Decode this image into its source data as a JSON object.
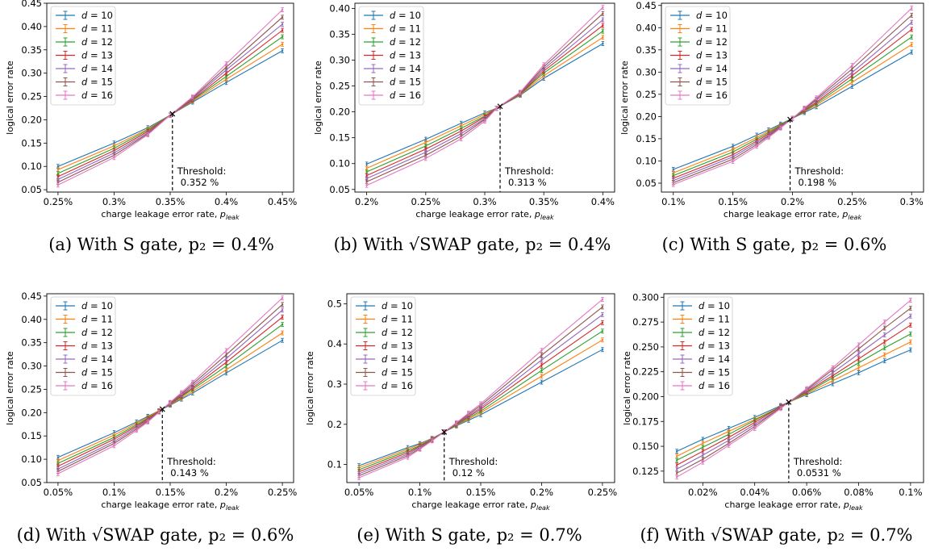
{
  "chart_data": [
    {
      "type": "line",
      "caption": "(a) With S gate, p₂ = 0.4%",
      "xlabel": "charge leakage error rate, p_leak",
      "ylabel": "logical error rate",
      "xlim": [
        0.0024,
        0.0046
      ],
      "ylim": [
        0.045,
        0.45
      ],
      "xticks": [
        0.0025,
        0.003,
        0.0035,
        0.004,
        0.0045
      ],
      "xticklabels": [
        "0.25%",
        "0.3%",
        "0.35%",
        "0.4%",
        "0.45%"
      ],
      "yticks": [
        0.05,
        0.1,
        0.15,
        0.2,
        0.25,
        0.3,
        0.35,
        0.4,
        0.45
      ],
      "yticklabels": [
        "0.05",
        "0.10",
        "0.15",
        "0.20",
        "0.25",
        "0.30",
        "0.35",
        "0.40",
        "0.45"
      ],
      "x": [
        0.0025,
        0.003,
        0.0033,
        0.0035,
        0.0037,
        0.004,
        0.0045
      ],
      "threshold": 0.00352,
      "threshold_label": [
        "Threshold:",
        "0.352 %"
      ],
      "series": [
        {
          "name": "d = 10",
          "values": [
            0.1,
            0.15,
            0.183,
            0.21,
            0.238,
            0.28,
            0.348
          ]
        },
        {
          "name": "d = 11",
          "values": [
            0.093,
            0.144,
            0.18,
            0.21,
            0.24,
            0.287,
            0.362
          ]
        },
        {
          "name": "d = 12",
          "values": [
            0.085,
            0.139,
            0.178,
            0.21,
            0.242,
            0.293,
            0.378
          ]
        },
        {
          "name": "d = 13",
          "values": [
            0.078,
            0.134,
            0.175,
            0.21,
            0.243,
            0.3,
            0.392
          ]
        },
        {
          "name": "d = 14",
          "values": [
            0.072,
            0.129,
            0.172,
            0.21,
            0.245,
            0.307,
            0.405
          ]
        },
        {
          "name": "d = 15",
          "values": [
            0.066,
            0.124,
            0.17,
            0.21,
            0.247,
            0.313,
            0.42
          ]
        },
        {
          "name": "d = 16",
          "values": [
            0.06,
            0.119,
            0.168,
            0.21,
            0.249,
            0.32,
            0.436
          ]
        }
      ]
    },
    {
      "type": "line",
      "caption": "(b) With √SWAP gate, p₂ = 0.4%",
      "xlabel": "charge leakage error rate, p_leak",
      "ylabel": "logical error rate",
      "xlim": [
        0.0019,
        0.0041
      ],
      "ylim": [
        0.045,
        0.41
      ],
      "xticks": [
        0.002,
        0.0025,
        0.003,
        0.0035,
        0.004
      ],
      "xticklabels": [
        "0.2%",
        "0.25%",
        "0.3%",
        "0.35%",
        "0.4%"
      ],
      "yticks": [
        0.05,
        0.1,
        0.15,
        0.2,
        0.25,
        0.3,
        0.35,
        0.4
      ],
      "yticklabels": [
        "0.05",
        "0.10",
        "0.15",
        "0.20",
        "0.25",
        "0.30",
        "0.35",
        "0.40"
      ],
      "x": [
        0.002,
        0.0025,
        0.0028,
        0.003,
        0.0031,
        0.0033,
        0.0035,
        0.004
      ],
      "threshold": 0.00313,
      "threshold_label": [
        "Threshold:",
        "0.313 %"
      ],
      "series": [
        {
          "name": "d = 10",
          "values": [
            0.099,
            0.147,
            0.178,
            0.198,
            0.207,
            0.232,
            0.265,
            0.332
          ]
        },
        {
          "name": "d = 11",
          "values": [
            0.091,
            0.141,
            0.173,
            0.195,
            0.207,
            0.233,
            0.27,
            0.344
          ]
        },
        {
          "name": "d = 12",
          "values": [
            0.084,
            0.134,
            0.168,
            0.192,
            0.207,
            0.234,
            0.275,
            0.356
          ]
        },
        {
          "name": "d = 13",
          "values": [
            0.077,
            0.128,
            0.163,
            0.19,
            0.207,
            0.235,
            0.279,
            0.367
          ]
        },
        {
          "name": "d = 14",
          "values": [
            0.071,
            0.122,
            0.158,
            0.187,
            0.207,
            0.236,
            0.283,
            0.378
          ]
        },
        {
          "name": "d = 15",
          "values": [
            0.065,
            0.116,
            0.153,
            0.185,
            0.207,
            0.237,
            0.287,
            0.39
          ]
        },
        {
          "name": "d = 16",
          "values": [
            0.058,
            0.11,
            0.148,
            0.182,
            0.207,
            0.238,
            0.291,
            0.402
          ]
        }
      ]
    },
    {
      "type": "line",
      "caption": "(c) With S gate, p₂ = 0.6%",
      "xlabel": "charge leakage error rate, p_leak",
      "ylabel": "logical error rate",
      "xlim": [
        0.0009,
        0.0031
      ],
      "ylim": [
        0.03,
        0.455
      ],
      "xticks": [
        0.001,
        0.0015,
        0.002,
        0.0025,
        0.003
      ],
      "xticklabels": [
        "0.1%",
        "0.15%",
        "0.2%",
        "0.25%",
        "0.3%"
      ],
      "yticks": [
        0.05,
        0.1,
        0.15,
        0.2,
        0.25,
        0.3,
        0.35,
        0.4,
        0.45
      ],
      "yticklabels": [
        "0.05",
        "0.10",
        "0.15",
        "0.20",
        "0.25",
        "0.30",
        "0.35",
        "0.40",
        "0.45"
      ],
      "x": [
        0.001,
        0.0015,
        0.0017,
        0.0018,
        0.0019,
        0.002,
        0.0021,
        0.0022,
        0.0025,
        0.003
      ],
      "threshold": 0.00198,
      "threshold_label": [
        "Threshold:",
        "0.198 %"
      ],
      "series": [
        {
          "name": "d = 10",
          "values": [
            0.081,
            0.133,
            0.158,
            0.17,
            0.183,
            0.196,
            0.209,
            0.222,
            0.268,
            0.345
          ]
        },
        {
          "name": "d = 11",
          "values": [
            0.073,
            0.126,
            0.153,
            0.167,
            0.181,
            0.196,
            0.211,
            0.226,
            0.277,
            0.362
          ]
        },
        {
          "name": "d = 12",
          "values": [
            0.067,
            0.12,
            0.149,
            0.164,
            0.18,
            0.196,
            0.212,
            0.229,
            0.285,
            0.379
          ]
        },
        {
          "name": "d = 13",
          "values": [
            0.061,
            0.114,
            0.145,
            0.161,
            0.178,
            0.196,
            0.214,
            0.232,
            0.292,
            0.396
          ]
        },
        {
          "name": "d = 14",
          "values": [
            0.056,
            0.109,
            0.141,
            0.158,
            0.177,
            0.196,
            0.216,
            0.236,
            0.299,
            0.412
          ]
        },
        {
          "name": "d = 15",
          "values": [
            0.051,
            0.104,
            0.137,
            0.156,
            0.175,
            0.196,
            0.217,
            0.239,
            0.307,
            0.428
          ]
        },
        {
          "name": "d = 16",
          "values": [
            0.047,
            0.099,
            0.133,
            0.153,
            0.174,
            0.196,
            0.219,
            0.242,
            0.315,
            0.444
          ]
        }
      ]
    },
    {
      "type": "line",
      "caption": "(d) With √SWAP gate, p₂ = 0.6%",
      "xlabel": "charge leakage error rate, p_leak",
      "ylabel": "logical error rate",
      "xlim": [
        0.0004,
        0.0026
      ],
      "ylim": [
        0.05,
        0.455
      ],
      "xticks": [
        0.0005,
        0.001,
        0.0015,
        0.002,
        0.0025
      ],
      "xticklabels": [
        "0.05%",
        "0.1%",
        "0.15%",
        "0.2%",
        "0.25%"
      ],
      "yticks": [
        0.05,
        0.1,
        0.15,
        0.2,
        0.25,
        0.3,
        0.35,
        0.4,
        0.45
      ],
      "yticklabels": [
        "0.05",
        "0.10",
        "0.15",
        "0.20",
        "0.25",
        "0.30",
        "0.35",
        "0.40",
        "0.45"
      ],
      "x": [
        0.0005,
        0.001,
        0.0012,
        0.0013,
        0.0014,
        0.0015,
        0.0016,
        0.0017,
        0.002,
        0.0025
      ],
      "threshold": 0.00143,
      "threshold_label": [
        "Threshold:",
        "0.143 %"
      ],
      "series": [
        {
          "name": "d = 10",
          "values": [
            0.104,
            0.157,
            0.18,
            0.192,
            0.204,
            0.216,
            0.229,
            0.242,
            0.285,
            0.355
          ]
        },
        {
          "name": "d = 11",
          "values": [
            0.097,
            0.152,
            0.177,
            0.19,
            0.204,
            0.217,
            0.231,
            0.246,
            0.292,
            0.371
          ]
        },
        {
          "name": "d = 12",
          "values": [
            0.091,
            0.147,
            0.174,
            0.188,
            0.203,
            0.218,
            0.234,
            0.25,
            0.3,
            0.389
          ]
        },
        {
          "name": "d = 13",
          "values": [
            0.085,
            0.143,
            0.171,
            0.186,
            0.203,
            0.219,
            0.236,
            0.253,
            0.308,
            0.405
          ]
        },
        {
          "name": "d = 14",
          "values": [
            0.079,
            0.138,
            0.168,
            0.184,
            0.202,
            0.22,
            0.238,
            0.257,
            0.316,
            0.42
          ]
        },
        {
          "name": "d = 15",
          "values": [
            0.074,
            0.134,
            0.165,
            0.182,
            0.202,
            0.221,
            0.24,
            0.261,
            0.324,
            0.432
          ]
        },
        {
          "name": "d = 16",
          "values": [
            0.069,
            0.129,
            0.162,
            0.18,
            0.201,
            0.222,
            0.243,
            0.265,
            0.333,
            0.446
          ]
        }
      ]
    },
    {
      "type": "line",
      "caption": "(e) With S gate, p₂ = 0.7%",
      "xlabel": "charge leakage error rate, p_leak",
      "ylabel": "logical error rate",
      "xlim": [
        0.0004,
        0.0026
      ],
      "ylim": [
        0.055,
        0.525
      ],
      "xticks": [
        0.0005,
        0.001,
        0.0015,
        0.002,
        0.0025
      ],
      "xticklabels": [
        "0.05%",
        "0.1%",
        "0.15%",
        "0.2%",
        "0.25%"
      ],
      "yticks": [
        0.1,
        0.2,
        0.3,
        0.4,
        0.5
      ],
      "yticklabels": [
        "0.1",
        "0.2",
        "0.3",
        "0.4",
        "0.5"
      ],
      "x": [
        0.0005,
        0.0009,
        0.001,
        0.0011,
        0.0012,
        0.0013,
        0.0014,
        0.0015,
        0.002,
        0.0025
      ],
      "threshold": 0.0012,
      "threshold_label": [
        "Threshold:",
        "0.12 %"
      ],
      "series": [
        {
          "name": "d = 10",
          "values": [
            0.097,
            0.142,
            0.152,
            0.165,
            0.181,
            0.196,
            0.21,
            0.224,
            0.305,
            0.386
          ]
        },
        {
          "name": "d = 11",
          "values": [
            0.092,
            0.138,
            0.15,
            0.164,
            0.181,
            0.197,
            0.213,
            0.229,
            0.32,
            0.41
          ]
        },
        {
          "name": "d = 12",
          "values": [
            0.087,
            0.134,
            0.147,
            0.163,
            0.181,
            0.198,
            0.216,
            0.233,
            0.334,
            0.432
          ]
        },
        {
          "name": "d = 13",
          "values": [
            0.082,
            0.13,
            0.145,
            0.162,
            0.181,
            0.2,
            0.219,
            0.238,
            0.347,
            0.453
          ]
        },
        {
          "name": "d = 14",
          "values": [
            0.077,
            0.126,
            0.143,
            0.161,
            0.181,
            0.201,
            0.222,
            0.242,
            0.36,
            0.473
          ]
        },
        {
          "name": "d = 15",
          "values": [
            0.072,
            0.122,
            0.14,
            0.16,
            0.181,
            0.202,
            0.225,
            0.247,
            0.372,
            0.492
          ]
        },
        {
          "name": "d = 16",
          "values": [
            0.067,
            0.118,
            0.138,
            0.159,
            0.181,
            0.204,
            0.228,
            0.251,
            0.384,
            0.511
          ]
        }
      ]
    },
    {
      "type": "line",
      "caption": "(f) With √SWAP gate, p₂ = 0.7%",
      "xlabel": "charge leakage error rate, p_leak",
      "ylabel": "logical error rate",
      "xlim": [
        5e-05,
        0.00105
      ],
      "ylim": [
        0.1135,
        0.3035
      ],
      "xticks": [
        0.0002,
        0.0004,
        0.0006,
        0.0008,
        0.001
      ],
      "xticklabels": [
        "0.02%",
        "0.04%",
        "0.06%",
        "0.08%",
        "0.1%"
      ],
      "yticks": [
        0.125,
        0.15,
        0.175,
        0.2,
        0.225,
        0.25,
        0.275,
        0.3
      ],
      "yticklabels": [
        "0.125",
        "0.150",
        "0.175",
        "0.200",
        "0.225",
        "0.250",
        "0.275",
        "0.300"
      ],
      "x": [
        0.0001,
        0.0002,
        0.0003,
        0.0004,
        0.0005,
        0.0006,
        0.0007,
        0.0008,
        0.0009,
        0.001
      ],
      "threshold": 0.000531,
      "threshold_label": [
        "Threshold:",
        "0.0531 %"
      ],
      "series": [
        {
          "name": "d = 10",
          "values": [
            0.145,
            0.157,
            0.168,
            0.179,
            0.191,
            0.202,
            0.213,
            0.224,
            0.236,
            0.247
          ]
        },
        {
          "name": "d = 11",
          "values": [
            0.14,
            0.153,
            0.165,
            0.177,
            0.19,
            0.203,
            0.216,
            0.229,
            0.242,
            0.255
          ]
        },
        {
          "name": "d = 12",
          "values": [
            0.136,
            0.149,
            0.162,
            0.176,
            0.19,
            0.204,
            0.219,
            0.234,
            0.249,
            0.263
          ]
        },
        {
          "name": "d = 13",
          "values": [
            0.131,
            0.145,
            0.159,
            0.174,
            0.19,
            0.205,
            0.221,
            0.238,
            0.255,
            0.272
          ]
        },
        {
          "name": "d = 14",
          "values": [
            0.127,
            0.141,
            0.156,
            0.172,
            0.189,
            0.206,
            0.224,
            0.243,
            0.262,
            0.281
          ]
        },
        {
          "name": "d = 15",
          "values": [
            0.123,
            0.137,
            0.153,
            0.17,
            0.189,
            0.207,
            0.227,
            0.248,
            0.269,
            0.289
          ]
        },
        {
          "name": "d = 16",
          "values": [
            0.119,
            0.134,
            0.151,
            0.168,
            0.188,
            0.208,
            0.229,
            0.252,
            0.275,
            0.297
          ]
        }
      ]
    }
  ],
  "colors": [
    "#1f77b4",
    "#ff7f0e",
    "#2ca02c",
    "#d62728",
    "#9467bd",
    "#8c564b",
    "#e377c2"
  ]
}
